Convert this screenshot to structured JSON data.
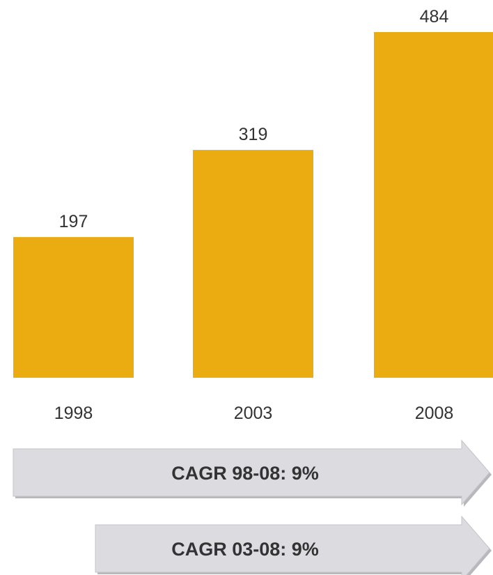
{
  "chart_data": {
    "type": "bar",
    "categories": [
      "1998",
      "2003",
      "2008"
    ],
    "values": [
      197,
      319,
      484
    ],
    "title": "",
    "xlabel": "",
    "ylabel": "",
    "ylim": [
      0,
      484
    ],
    "grid": false,
    "bar_color": "#EBAC12",
    "annotations": [
      {
        "text": "CAGR 98-08: 9%",
        "from": "1998",
        "to": "2008"
      },
      {
        "text": "CAGR 03-08: 9%",
        "from": "2003",
        "to": "2008"
      }
    ],
    "arrow_color": "#DCDCE0",
    "text_color": "#333333"
  }
}
